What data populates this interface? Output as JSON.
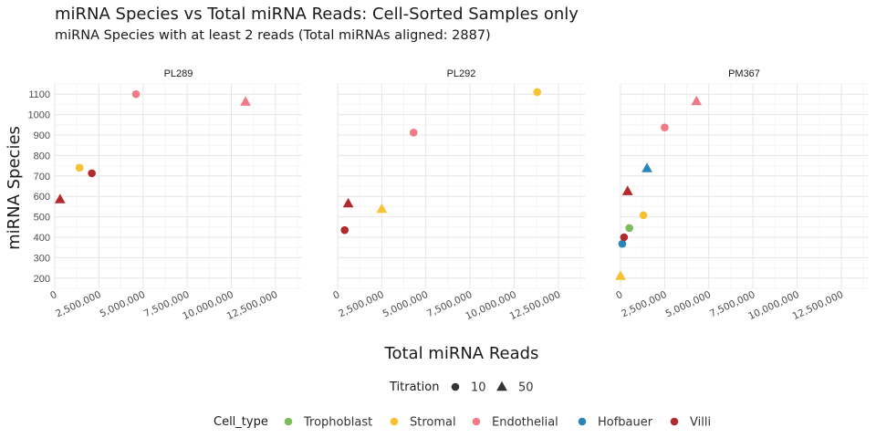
{
  "chart_data": {
    "type": "scatter",
    "title": "miRNA Species vs Total miRNA Reads: Cell-Sorted Samples only",
    "subtitle": "miRNA Species with at least 2 reads (Total miRNAs aligned: 2887)",
    "xlabel": "Total miRNA Reads",
    "ylabel": "miRNA Species",
    "xlim": [
      0,
      14000000
    ],
    "ylim": [
      150,
      1150
    ],
    "xticks": [
      {
        "value": 0,
        "label": "0"
      },
      {
        "value": 2500000,
        "label": "2,500,000"
      },
      {
        "value": 5000000,
        "label": "5,000,000"
      },
      {
        "value": 7500000,
        "label": "7,500,000"
      },
      {
        "value": 10000000,
        "label": "10,000,000"
      },
      {
        "value": 12500000,
        "label": "12,500,000"
      }
    ],
    "yticks": [
      200,
      300,
      400,
      500,
      600,
      700,
      800,
      900,
      1000,
      1100
    ],
    "facets": [
      {
        "name": "PL289",
        "points": [
          {
            "x": 300000,
            "y": 585,
            "cell": "Villi",
            "titration": 50
          },
          {
            "x": 1400000,
            "y": 740,
            "cell": "Stromal",
            "titration": 10
          },
          {
            "x": 2100000,
            "y": 713,
            "cell": "Villi",
            "titration": 10
          },
          {
            "x": 4600000,
            "y": 1100,
            "cell": "Endothelial",
            "titration": 10
          },
          {
            "x": 10800000,
            "y": 1062,
            "cell": "Endothelial",
            "titration": 50
          }
        ]
      },
      {
        "name": "PL292",
        "points": [
          {
            "x": 400000,
            "y": 435,
            "cell": "Villi",
            "titration": 10
          },
          {
            "x": 600000,
            "y": 565,
            "cell": "Villi",
            "titration": 50
          },
          {
            "x": 2500000,
            "y": 538,
            "cell": "Stromal",
            "titration": 50
          },
          {
            "x": 4300000,
            "y": 912,
            "cell": "Endothelial",
            "titration": 10
          },
          {
            "x": 11300000,
            "y": 1110,
            "cell": "Stromal",
            "titration": 10
          }
        ]
      },
      {
        "name": "PM367",
        "points": [
          {
            "x": 0,
            "y": 210,
            "cell": "Stromal",
            "titration": 50
          },
          {
            "x": 100000,
            "y": 368,
            "cell": "Hofbauer",
            "titration": 10
          },
          {
            "x": 200000,
            "y": 400,
            "cell": "Villi",
            "titration": 10
          },
          {
            "x": 500000,
            "y": 445,
            "cell": "Trophoblast",
            "titration": 10
          },
          {
            "x": 400000,
            "y": 625,
            "cell": "Villi",
            "titration": 50
          },
          {
            "x": 1300000,
            "y": 508,
            "cell": "Stromal",
            "titration": 10
          },
          {
            "x": 1500000,
            "y": 737,
            "cell": "Hofbauer",
            "titration": 50
          },
          {
            "x": 2500000,
            "y": 937,
            "cell": "Endothelial",
            "titration": 10
          },
          {
            "x": 4300000,
            "y": 1065,
            "cell": "Endothelial",
            "titration": 50
          }
        ]
      }
    ],
    "legend_titration": {
      "title": "Titration",
      "items": [
        {
          "label": "10",
          "shape": "circle"
        },
        {
          "label": "50",
          "shape": "triangle"
        }
      ]
    },
    "legend_cell": {
      "title": "Cell_type",
      "items": [
        {
          "label": "Trophoblast",
          "color": "#7bbd5a"
        },
        {
          "label": "Stromal",
          "color": "#f7c131"
        },
        {
          "label": "Endothelial",
          "color": "#f07b86"
        },
        {
          "label": "Hofbauer",
          "color": "#2b86b8"
        },
        {
          "label": "Villi",
          "color": "#b02a2e"
        }
      ]
    },
    "legend_position": "bottom",
    "grid": true
  }
}
